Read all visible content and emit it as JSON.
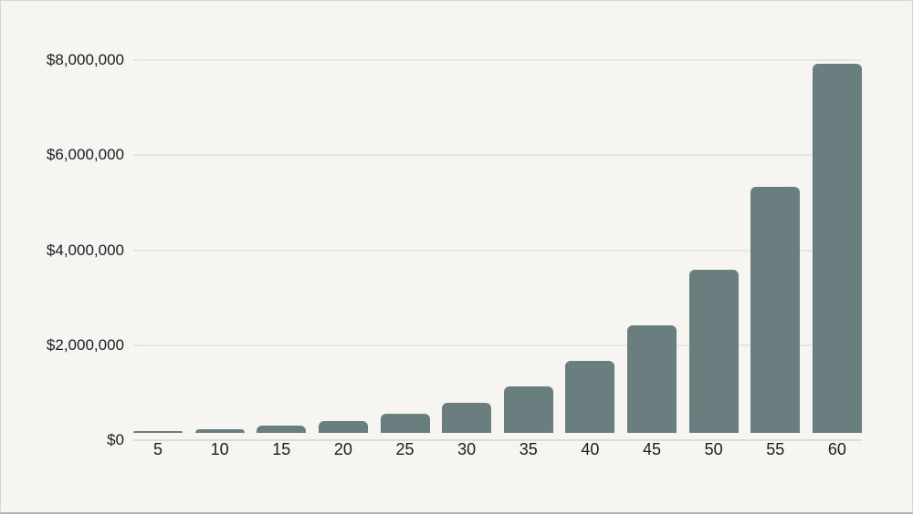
{
  "chart_data": {
    "type": "bar",
    "title": "",
    "xlabel": "",
    "ylabel": "",
    "categories": [
      "5",
      "10",
      "15",
      "20",
      "25",
      "30",
      "35",
      "40",
      "45",
      "50",
      "55",
      "60"
    ],
    "values": [
      50000,
      85000,
      160000,
      250000,
      405000,
      640000,
      990000,
      1520000,
      2280000,
      3450000,
      5180000,
      7770000
    ],
    "y_ticks": [
      {
        "label": "$0",
        "value": 0
      },
      {
        "label": "$2,000,000",
        "value": 2000000
      },
      {
        "label": "$4,000,000",
        "value": 4000000
      },
      {
        "label": "$6,000,000",
        "value": 6000000
      },
      {
        "label": "$8,000,000",
        "value": 8000000
      }
    ],
    "ylim": [
      0,
      8000000
    ],
    "grid": true,
    "legend": "none",
    "colors": {
      "bar": "#6a7d7f",
      "background": "#f7f5f2",
      "gridline": "#e7e5e2",
      "baseline": "#dedcd8",
      "text": "#1c1c1c",
      "frame_border": "#d8d6d3",
      "frame_border_bottom": "#b7b5b2"
    }
  }
}
